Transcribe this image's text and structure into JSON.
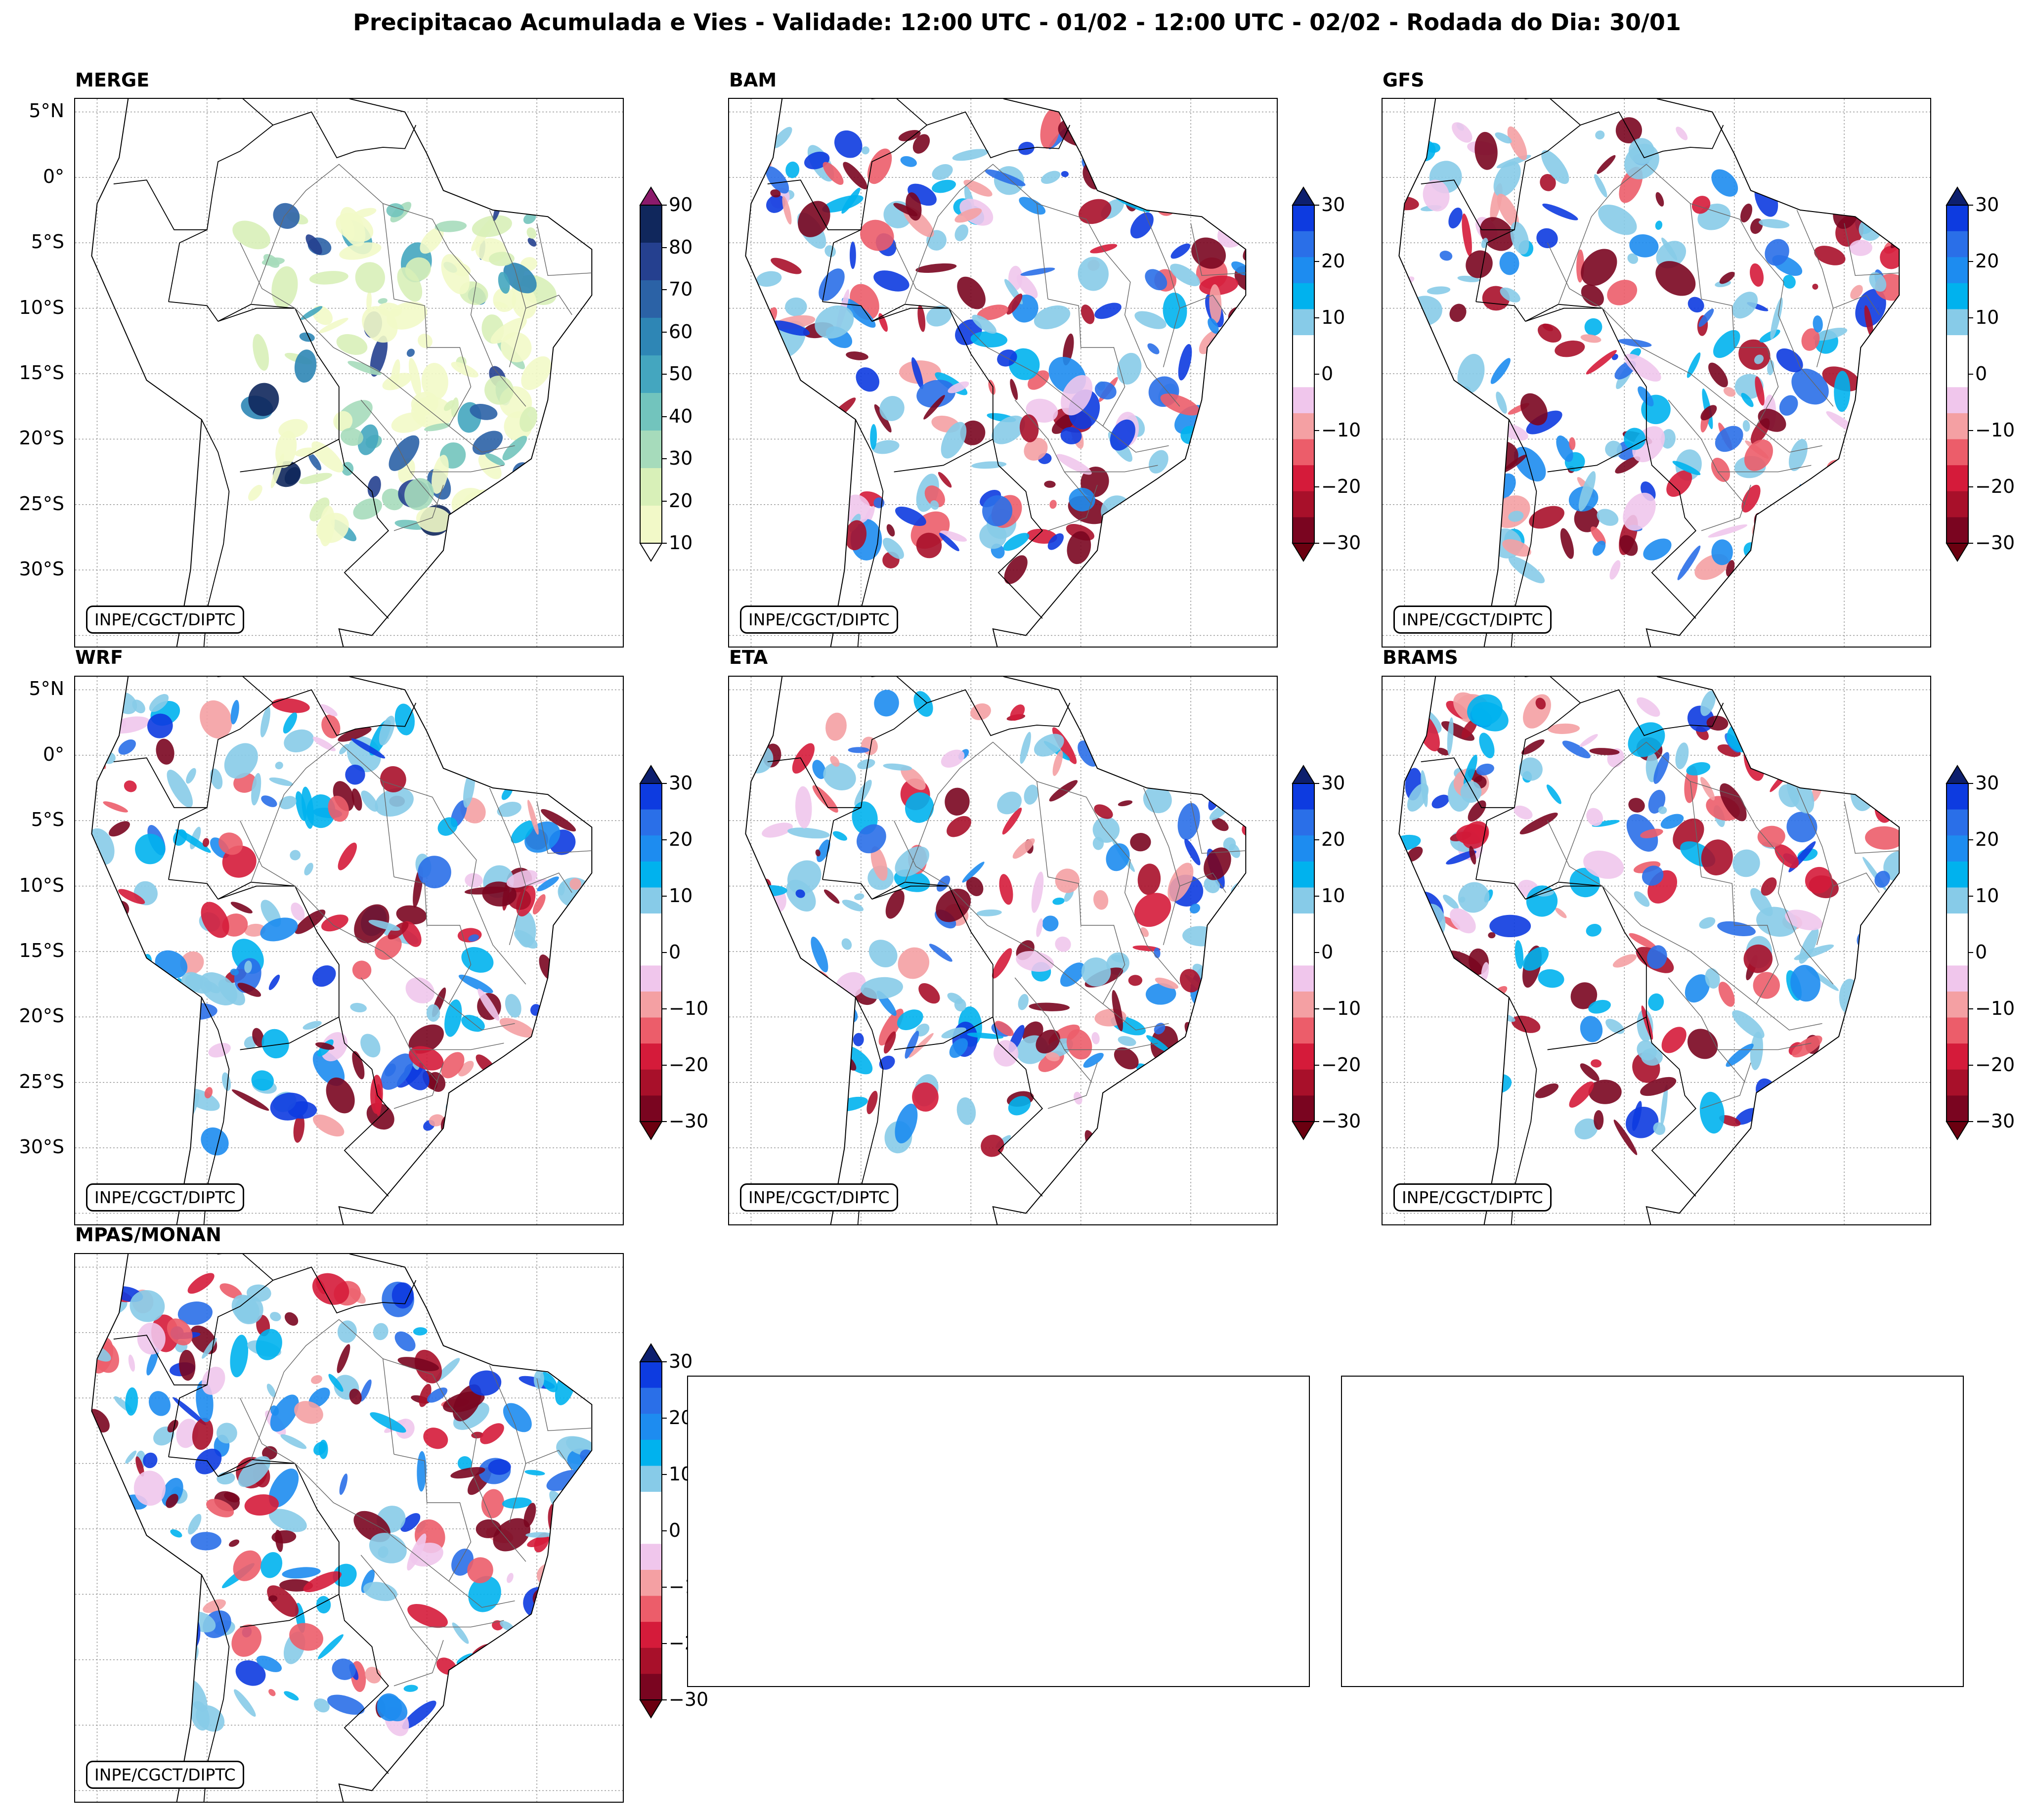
{
  "title": "Precipitacao Acumulada e Vies - Validade: 12:00 UTC - 01/02 - 12:00 UTC - 02/02 - Rodada do Dia: 30/01",
  "credit": "INPE/CGCT/DIPTC",
  "lat_labels": [
    "5°N",
    "0°",
    "5°S",
    "10°S",
    "15°S",
    "20°S",
    "25°S",
    "30°S"
  ],
  "colorbars": {
    "precip": {
      "ticks": [
        "90",
        "80",
        "70",
        "60",
        "50",
        "40",
        "30",
        "20",
        "10"
      ],
      "colors": [
        "#10275c",
        "#25408f",
        "#2b62a6",
        "#2e86b5",
        "#44a6bf",
        "#72c4bd",
        "#a6dbbb",
        "#d8f0b8",
        "#f2f9c8"
      ],
      "over": "#8b1a6b",
      "under": "#ffffff"
    },
    "bias": {
      "ticks": [
        "30",
        "20",
        "10",
        "0",
        "−10",
        "−20",
        "−30"
      ],
      "colors": [
        "#0d3be0",
        "#2a6fe8",
        "#1d8cf0",
        "#00b2ee",
        "#87cbe8",
        "#ffffff",
        "#ffffff",
        "#f0c6ec",
        "#f4a0a3",
        "#ec5d6a",
        "#d51b3a",
        "#a8102a",
        "#7a0520"
      ],
      "over": "#0d1f6e",
      "under": "#6b0010"
    }
  },
  "panels": [
    {
      "title": "MERGE",
      "type": "precip"
    },
    {
      "title": "BAM",
      "type": "bias"
    },
    {
      "title": "GFS",
      "type": "bias"
    },
    {
      "title": "WRF",
      "type": "bias"
    },
    {
      "title": "ETA",
      "type": "bias"
    },
    {
      "title": "BRAMS",
      "type": "bias"
    },
    {
      "title": "MPAS/MONAN",
      "type": "bias"
    }
  ]
}
